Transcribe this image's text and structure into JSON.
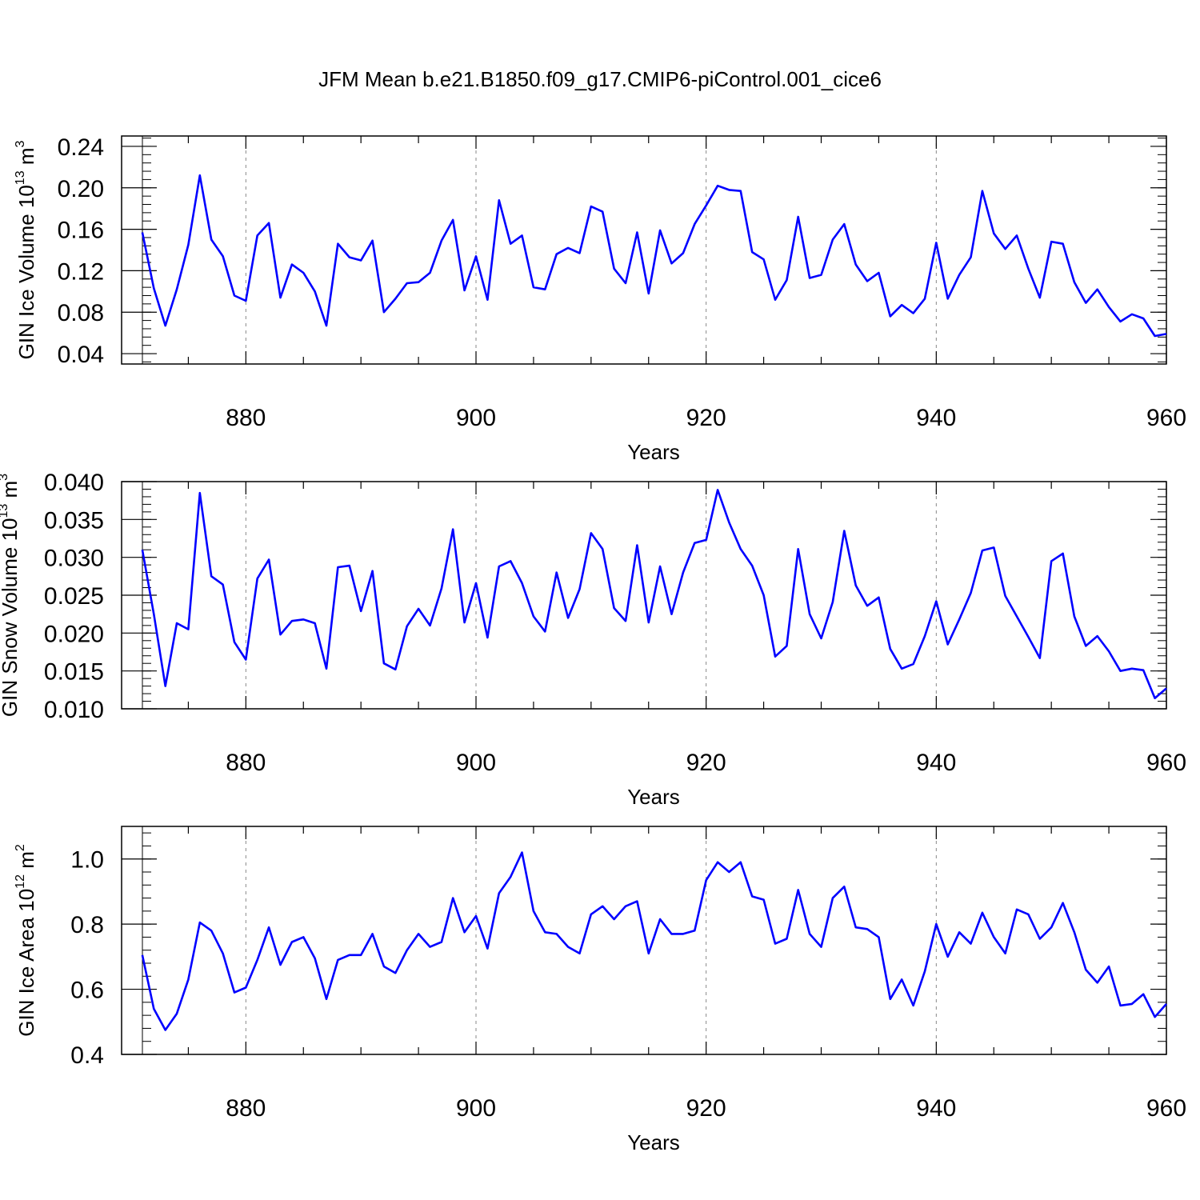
{
  "title": "JFM Mean b.e21.B1850.f09_g17.CMIP6-piControl.001_cice6",
  "style": {
    "line_color": "#0000ff",
    "grid_color": "#888888",
    "frame_color": "#000000"
  },
  "chart_data": [
    {
      "type": "line",
      "xlabel": "Years",
      "ylabel": {
        "main": "GIN Ice Volume 10",
        "exp": "13",
        "unit": " m",
        "unit_exp": "3"
      },
      "xlim": [
        871,
        960
      ],
      "ylim": [
        0.03,
        0.25
      ],
      "xticks": [
        {
          "v": 880,
          "label": "880"
        },
        {
          "v": 900,
          "label": "900"
        },
        {
          "v": 920,
          "label": "920"
        },
        {
          "v": 940,
          "label": "940"
        },
        {
          "v": 960,
          "label": "960"
        }
      ],
      "yticks": [
        {
          "v": 0.04,
          "label": "0.04"
        },
        {
          "v": 0.08,
          "label": "0.08"
        },
        {
          "v": 0.12,
          "label": "0.12"
        },
        {
          "v": 0.16,
          "label": "0.16"
        },
        {
          "v": 0.2,
          "label": "0.20"
        },
        {
          "v": 0.24,
          "label": "0.24"
        }
      ],
      "yminor": 0.008,
      "grid_x": [
        880,
        900,
        920,
        940
      ],
      "x_start": 871,
      "values": [
        0.157,
        0.103,
        0.067,
        0.102,
        0.145,
        0.212,
        0.15,
        0.134,
        0.096,
        0.091,
        0.154,
        0.166,
        0.094,
        0.126,
        0.118,
        0.1,
        0.067,
        0.146,
        0.133,
        0.13,
        0.149,
        0.08,
        0.093,
        0.108,
        0.109,
        0.118,
        0.149,
        0.169,
        0.101,
        0.134,
        0.092,
        0.188,
        0.146,
        0.154,
        0.104,
        0.102,
        0.136,
        0.142,
        0.137,
        0.182,
        0.177,
        0.122,
        0.108,
        0.157,
        0.098,
        0.159,
        0.127,
        0.137,
        0.165,
        0.183,
        0.202,
        0.198,
        0.197,
        0.138,
        0.131,
        0.092,
        0.111,
        0.172,
        0.113,
        0.116,
        0.15,
        0.165,
        0.126,
        0.11,
        0.118,
        0.076,
        0.087,
        0.079,
        0.093,
        0.147,
        0.093,
        0.116,
        0.133,
        0.197,
        0.156,
        0.141,
        0.154,
        0.122,
        0.094,
        0.148,
        0.146,
        0.109,
        0.089,
        0.102,
        0.085,
        0.071,
        0.078,
        0.074,
        0.057,
        0.059
      ]
    },
    {
      "type": "line",
      "xlabel": "Years",
      "ylabel": {
        "main": "GIN Snow Volume 10",
        "exp": "13",
        "unit": " m",
        "unit_exp": "3"
      },
      "xlim": [
        871,
        960
      ],
      "ylim": [
        0.01,
        0.04
      ],
      "xticks": [
        {
          "v": 880,
          "label": "880"
        },
        {
          "v": 900,
          "label": "900"
        },
        {
          "v": 920,
          "label": "920"
        },
        {
          "v": 940,
          "label": "940"
        },
        {
          "v": 960,
          "label": "960"
        }
      ],
      "yticks": [
        {
          "v": 0.01,
          "label": "0.010"
        },
        {
          "v": 0.015,
          "label": "0.015"
        },
        {
          "v": 0.02,
          "label": "0.020"
        },
        {
          "v": 0.025,
          "label": "0.025"
        },
        {
          "v": 0.03,
          "label": "0.030"
        },
        {
          "v": 0.035,
          "label": "0.035"
        },
        {
          "v": 0.04,
          "label": "0.040"
        }
      ],
      "yminor": 0.001,
      "grid_x": [
        880,
        900,
        920,
        940
      ],
      "x_start": 871,
      "values": [
        0.031,
        0.0225,
        0.013,
        0.0213,
        0.0205,
        0.0385,
        0.0275,
        0.0264,
        0.0188,
        0.0165,
        0.0272,
        0.0297,
        0.0198,
        0.0216,
        0.0218,
        0.0213,
        0.0153,
        0.0287,
        0.0289,
        0.0229,
        0.0282,
        0.016,
        0.0152,
        0.0209,
        0.0232,
        0.021,
        0.0259,
        0.0337,
        0.0214,
        0.0266,
        0.0194,
        0.0288,
        0.0295,
        0.0266,
        0.0222,
        0.0202,
        0.028,
        0.022,
        0.0258,
        0.0332,
        0.0311,
        0.0233,
        0.0216,
        0.0316,
        0.0214,
        0.0288,
        0.0225,
        0.028,
        0.0319,
        0.0323,
        0.0389,
        0.0346,
        0.0311,
        0.0289,
        0.025,
        0.0169,
        0.0183,
        0.0311,
        0.0225,
        0.0193,
        0.0241,
        0.0335,
        0.0263,
        0.0236,
        0.0247,
        0.0179,
        0.0153,
        0.0159,
        0.0196,
        0.0242,
        0.0185,
        0.0218,
        0.0253,
        0.0309,
        0.0313,
        0.0249,
        0.0222,
        0.0195,
        0.0167,
        0.0295,
        0.0305,
        0.0222,
        0.0183,
        0.0196,
        0.0176,
        0.015,
        0.0153,
        0.0151,
        0.0114,
        0.0127
      ]
    },
    {
      "type": "line",
      "xlabel": "Years",
      "ylabel": {
        "main": "GIN Ice Area 10",
        "exp": "12",
        "unit": " m",
        "unit_exp": "2"
      },
      "xlim": [
        871,
        960
      ],
      "ylim": [
        0.4,
        1.1
      ],
      "xticks": [
        {
          "v": 880,
          "label": "880"
        },
        {
          "v": 900,
          "label": "900"
        },
        {
          "v": 920,
          "label": "920"
        },
        {
          "v": 940,
          "label": "940"
        },
        {
          "v": 960,
          "label": "960"
        }
      ],
      "yticks": [
        {
          "v": 0.4,
          "label": "0.4"
        },
        {
          "v": 0.6,
          "label": "0.6"
        },
        {
          "v": 0.8,
          "label": "0.8"
        },
        {
          "v": 1.0,
          "label": "1.0"
        }
      ],
      "yminor": 0.04,
      "grid_x": [
        880,
        900,
        920,
        940
      ],
      "x_start": 871,
      "values": [
        0.705,
        0.54,
        0.475,
        0.525,
        0.63,
        0.805,
        0.78,
        0.71,
        0.59,
        0.605,
        0.69,
        0.79,
        0.675,
        0.745,
        0.76,
        0.695,
        0.57,
        0.69,
        0.705,
        0.705,
        0.77,
        0.67,
        0.65,
        0.72,
        0.77,
        0.73,
        0.745,
        0.88,
        0.775,
        0.825,
        0.725,
        0.895,
        0.945,
        1.02,
        0.84,
        0.775,
        0.77,
        0.73,
        0.71,
        0.83,
        0.855,
        0.815,
        0.855,
        0.87,
        0.71,
        0.815,
        0.77,
        0.77,
        0.78,
        0.935,
        0.99,
        0.96,
        0.99,
        0.885,
        0.875,
        0.74,
        0.755,
        0.905,
        0.77,
        0.73,
        0.88,
        0.915,
        0.79,
        0.785,
        0.76,
        0.57,
        0.63,
        0.55,
        0.655,
        0.8,
        0.7,
        0.775,
        0.74,
        0.835,
        0.76,
        0.71,
        0.845,
        0.83,
        0.755,
        0.79,
        0.865,
        0.775,
        0.66,
        0.62,
        0.67,
        0.55,
        0.555,
        0.585,
        0.515,
        0.555
      ]
    }
  ]
}
